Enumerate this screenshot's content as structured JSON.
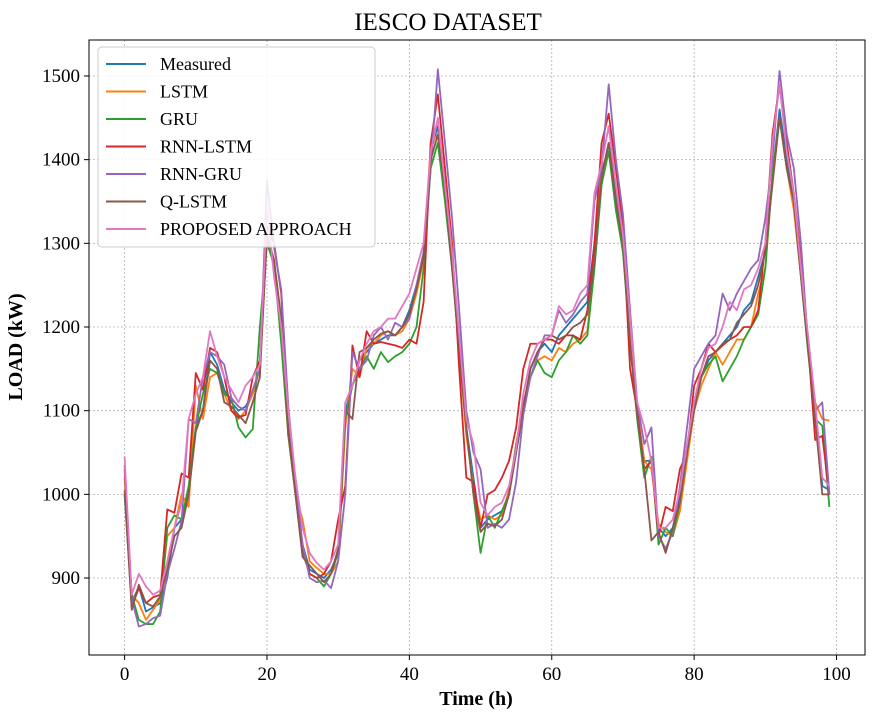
{
  "chart_data": {
    "type": "line",
    "title": "IESCO DATASET",
    "xlabel": "Time (h)",
    "ylabel": "LOAD (kW)",
    "xlim": [
      -5,
      104
    ],
    "ylim": [
      808,
      1543
    ],
    "xticks": [
      0,
      20,
      40,
      60,
      80,
      100
    ],
    "yticks": [
      900,
      1000,
      1100,
      1200,
      1300,
      1400,
      1500
    ],
    "grid": true,
    "legend_position": "top-left",
    "x": [
      0,
      1,
      2,
      3,
      4,
      5,
      6,
      7,
      8,
      9,
      10,
      11,
      12,
      13,
      14,
      15,
      16,
      17,
      18,
      19,
      20,
      21,
      22,
      23,
      24,
      25,
      26,
      27,
      28,
      29,
      30,
      31,
      32,
      33,
      34,
      35,
      36,
      37,
      38,
      39,
      40,
      41,
      42,
      43,
      44,
      45,
      46,
      47,
      48,
      49,
      50,
      51,
      52,
      53,
      54,
      55,
      56,
      57,
      58,
      59,
      60,
      61,
      62,
      63,
      64,
      65,
      66,
      67,
      68,
      69,
      70,
      71,
      72,
      73,
      74,
      75,
      76,
      77,
      78,
      79,
      80,
      81,
      82,
      83,
      84,
      85,
      86,
      87,
      88,
      89,
      90,
      91,
      92,
      93,
      94,
      95,
      96,
      97,
      98,
      99
    ],
    "series": [
      {
        "name": "Measured",
        "color": "#1f77b4",
        "values": [
          1000,
          870,
          890,
          860,
          865,
          870,
          900,
          960,
          970,
          1005,
          1080,
          1100,
          1170,
          1155,
          1125,
          1110,
          1100,
          1105,
          1120,
          1150,
          1310,
          1270,
          1200,
          1080,
          1010,
          940,
          910,
          905,
          900,
          910,
          930,
          1100,
          1130,
          1160,
          1170,
          1180,
          1185,
          1190,
          1190,
          1200,
          1220,
          1250,
          1280,
          1410,
          1440,
          1360,
          1280,
          1180,
          1080,
          1020,
          960,
          970,
          975,
          980,
          1000,
          1050,
          1100,
          1150,
          1170,
          1180,
          1170,
          1190,
          1200,
          1210,
          1220,
          1230,
          1300,
          1380,
          1420,
          1360,
          1300,
          1200,
          1100,
          1040,
          1040,
          960,
          950,
          960,
          1000,
          1050,
          1100,
          1140,
          1160,
          1170,
          1180,
          1190,
          1200,
          1220,
          1230,
          1260,
          1290,
          1380,
          1460,
          1400,
          1350,
          1270,
          1180,
          1100,
          1010,
          1005
        ]
      },
      {
        "name": "LSTM",
        "color": "#ff7f0e",
        "values": [
          1020,
          880,
          870,
          850,
          862,
          875,
          950,
          960,
          1000,
          985,
          1130,
          1090,
          1140,
          1145,
          1120,
          1100,
          1090,
          1100,
          1120,
          1150,
          1310,
          1280,
          1190,
          1070,
          1000,
          970,
          920,
          912,
          905,
          905,
          920,
          1080,
          1150,
          1140,
          1175,
          1180,
          1190,
          1195,
          1190,
          1195,
          1210,
          1240,
          1280,
          1420,
          1430,
          1370,
          1290,
          1170,
          1070,
          1010,
          970,
          975,
          970,
          975,
          1005,
          1060,
          1110,
          1140,
          1160,
          1165,
          1160,
          1175,
          1170,
          1180,
          1185,
          1195,
          1280,
          1390,
          1410,
          1350,
          1290,
          1200,
          1100,
          1040,
          1030,
          965,
          955,
          950,
          980,
          1040,
          1100,
          1130,
          1150,
          1170,
          1155,
          1170,
          1185,
          1185,
          1200,
          1240,
          1270,
          1380,
          1450,
          1390,
          1340,
          1260,
          1180,
          1110,
          1090,
          1088
        ]
      },
      {
        "name": "GRU",
        "color": "#2ca02c",
        "values": [
          1000,
          880,
          850,
          845,
          845,
          860,
          960,
          975,
          970,
          1010,
          1080,
          1120,
          1150,
          1145,
          1120,
          1115,
          1080,
          1068,
          1078,
          1200,
          1300,
          1275,
          1180,
          1070,
          1000,
          930,
          905,
          900,
          890,
          905,
          930,
          1090,
          1130,
          1150,
          1165,
          1150,
          1170,
          1158,
          1165,
          1170,
          1180,
          1200,
          1270,
          1390,
          1420,
          1350,
          1270,
          1170,
          1080,
          1000,
          930,
          975,
          960,
          980,
          1000,
          1060,
          1100,
          1140,
          1160,
          1145,
          1140,
          1160,
          1170,
          1190,
          1180,
          1190,
          1270,
          1370,
          1410,
          1340,
          1290,
          1180,
          1090,
          1020,
          1045,
          940,
          960,
          950,
          990,
          1050,
          1110,
          1140,
          1155,
          1165,
          1135,
          1150,
          1165,
          1185,
          1200,
          1215,
          1270,
          1380,
          1450,
          1390,
          1350,
          1260,
          1170,
          1090,
          1082,
          985
        ]
      },
      {
        "name": "RNN-LSTM",
        "color": "#d62728",
        "values": [
          1030,
          865,
          888,
          870,
          877,
          880,
          982,
          978,
          1025,
          1020,
          1145,
          1125,
          1175,
          1170,
          1140,
          1100,
          1092,
          1095,
          1140,
          1160,
          1320,
          1300,
          1240,
          1070,
          1020,
          935,
          905,
          900,
          905,
          920,
          970,
          1010,
          1178,
          1140,
          1195,
          1180,
          1182,
          1180,
          1178,
          1175,
          1185,
          1180,
          1230,
          1420,
          1478,
          1390,
          1300,
          1150,
          1020,
          1015,
          960,
          1000,
          1005,
          1020,
          1040,
          1080,
          1150,
          1180,
          1180,
          1185,
          1185,
          1180,
          1190,
          1190,
          1185,
          1220,
          1300,
          1420,
          1455,
          1390,
          1320,
          1150,
          1100,
          1030,
          1040,
          950,
          985,
          980,
          1030,
          1050,
          1130,
          1150,
          1180,
          1170,
          1178,
          1185,
          1190,
          1200,
          1200,
          1220,
          1300,
          1430,
          1490,
          1420,
          1360,
          1280,
          1180,
          1065,
          1070,
          1000
        ]
      },
      {
        "name": "RNN-GRU",
        "color": "#9467bd",
        "values": [
          1035,
          875,
          842,
          845,
          852,
          855,
          905,
          935,
          968,
          1090,
          1085,
          1140,
          1170,
          1165,
          1155,
          1115,
          1105,
          1100,
          1125,
          1150,
          1375,
          1295,
          1245,
          1105,
          1015,
          940,
          900,
          895,
          897,
          888,
          920,
          1000,
          1170,
          1150,
          1160,
          1190,
          1200,
          1185,
          1205,
          1200,
          1210,
          1250,
          1290,
          1390,
          1508,
          1420,
          1330,
          1220,
          1100,
          1050,
          1030,
          960,
          965,
          960,
          970,
          1015,
          1095,
          1140,
          1165,
          1190,
          1190,
          1220,
          1205,
          1215,
          1230,
          1240,
          1350,
          1390,
          1490,
          1400,
          1335,
          1220,
          1110,
          1060,
          1080,
          950,
          935,
          955,
          1010,
          1080,
          1150,
          1165,
          1180,
          1190,
          1240,
          1220,
          1240,
          1255,
          1270,
          1280,
          1330,
          1400,
          1506,
          1430,
          1390,
          1300,
          1180,
          1100,
          1110,
          1000
        ]
      },
      {
        "name": "Q-LSTM",
        "color": "#8c564b",
        "values": [
          1005,
          862,
          892,
          870,
          866,
          878,
          910,
          950,
          960,
          1000,
          1075,
          1100,
          1160,
          1150,
          1110,
          1105,
          1095,
          1085,
          1110,
          1140,
          1310,
          1280,
          1210,
          1075,
          1000,
          925,
          915,
          905,
          895,
          905,
          935,
          1100,
          1090,
          1170,
          1175,
          1185,
          1192,
          1195,
          1190,
          1200,
          1215,
          1245,
          1285,
          1400,
          1430,
          1365,
          1270,
          1175,
          1080,
          1000,
          955,
          965,
          962,
          970,
          1000,
          1050,
          1105,
          1150,
          1170,
          1185,
          1190,
          1185,
          1190,
          1200,
          1205,
          1215,
          1280,
          1380,
          1420,
          1350,
          1300,
          1180,
          1095,
          1030,
          945,
          955,
          930,
          960,
          990,
          1050,
          1100,
          1140,
          1165,
          1170,
          1180,
          1185,
          1205,
          1215,
          1225,
          1250,
          1290,
          1370,
          1450,
          1390,
          1350,
          1260,
          1175,
          1090,
          1000,
          1000
        ]
      },
      {
        "name": "PROPOSED APPROACH",
        "color": "#e377c2",
        "values": [
          1045,
          880,
          905,
          890,
          880,
          885,
          920,
          960,
          990,
          1090,
          1120,
          1140,
          1195,
          1165,
          1140,
          1125,
          1110,
          1130,
          1140,
          1155,
          1345,
          1260,
          1200,
          1100,
          1020,
          960,
          930,
          918,
          910,
          920,
          940,
          1110,
          1130,
          1160,
          1180,
          1195,
          1200,
          1210,
          1210,
          1225,
          1240,
          1270,
          1300,
          1410,
          1450,
          1370,
          1290,
          1190,
          1090,
          1060,
          990,
          975,
          985,
          990,
          1010,
          1055,
          1120,
          1160,
          1180,
          1185,
          1190,
          1225,
          1215,
          1220,
          1240,
          1250,
          1360,
          1395,
          1440,
          1370,
          1310,
          1210,
          1110,
          1080,
          1040,
          960,
          960,
          970,
          1005,
          1060,
          1110,
          1150,
          1175,
          1180,
          1200,
          1230,
          1220,
          1245,
          1250,
          1270,
          1300,
          1420,
          1490,
          1410,
          1360,
          1270,
          1190,
          1110,
          1020,
          1010
        ]
      }
    ]
  }
}
